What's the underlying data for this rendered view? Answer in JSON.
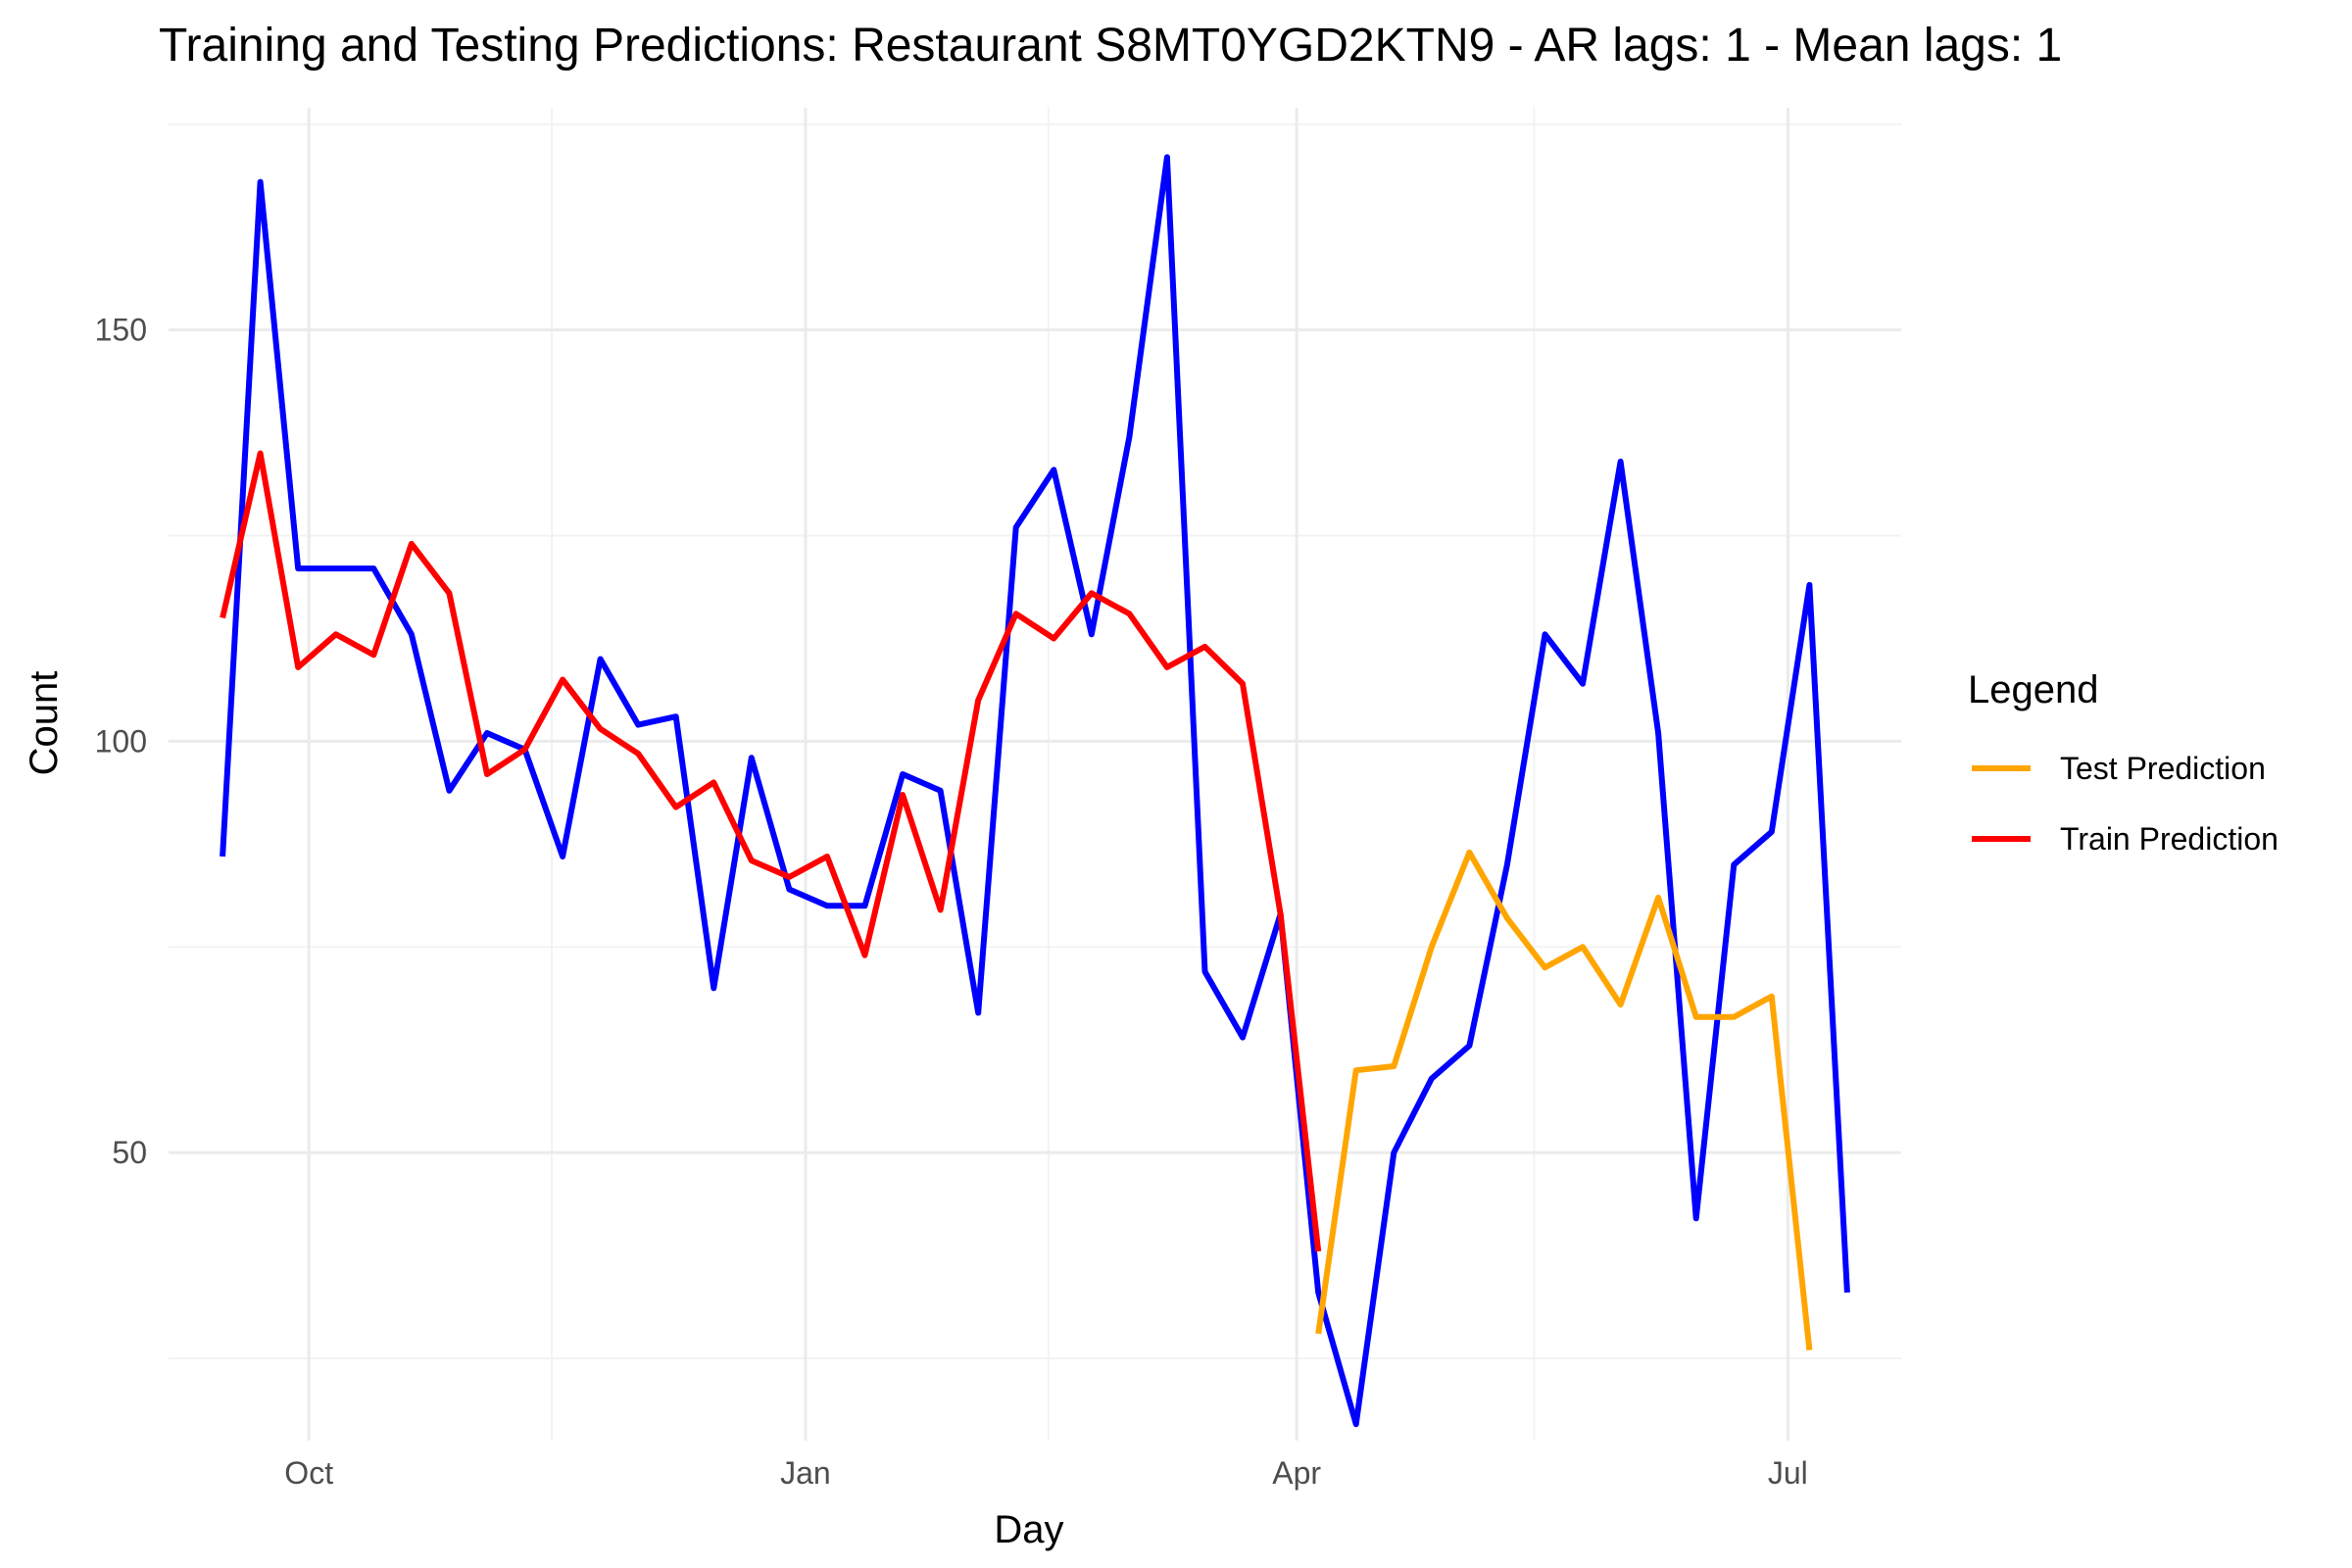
{
  "chart_data": {
    "type": "line",
    "title": "Training and Testing Predictions: Restaurant S8MT0YGD2KTN9 - AR lags: 1 - Mean lags: 1",
    "xlabel": "Day",
    "ylabel": "Count",
    "x_range": [
      "2023-09-05",
      "2024-07-22"
    ],
    "ylim": [
      15,
      177
    ],
    "x_ticks": [
      {
        "date": "2023-10-01",
        "label": "Oct"
      },
      {
        "date": "2024-01-01",
        "label": "Jan"
      },
      {
        "date": "2024-04-01",
        "label": "Apr"
      },
      {
        "date": "2024-07-01",
        "label": "Jul"
      }
    ],
    "x_minor_ticks": [
      "2023-11-15",
      "2024-02-15",
      "2024-05-15"
    ],
    "y_ticks": [
      {
        "value": 50,
        "label": "50"
      },
      {
        "value": 100,
        "label": "100"
      },
      {
        "value": 150,
        "label": "150"
      }
    ],
    "y_minor_ticks": [
      25,
      75,
      125,
      175
    ],
    "grid": true,
    "legend": {
      "title": "Legend",
      "position": "right",
      "entries": [
        {
          "label": "Test Prediction",
          "color": "#FFA500"
        },
        {
          "label": "Train Prediction",
          "color": "#FF0000"
        }
      ]
    },
    "series": [
      {
        "color": "#0000FF",
        "points": [
          [
            "2023-09-15",
            86
          ],
          [
            "2023-09-22",
            168
          ],
          [
            "2023-09-29",
            121
          ],
          [
            "2023-10-06",
            121
          ],
          [
            "2023-10-13",
            121
          ],
          [
            "2023-10-20",
            113
          ],
          [
            "2023-10-27",
            94
          ],
          [
            "2023-11-03",
            101
          ],
          [
            "2023-11-10",
            99
          ],
          [
            "2023-11-17",
            86
          ],
          [
            "2023-11-24",
            110
          ],
          [
            "2023-12-01",
            102
          ],
          [
            "2023-12-08",
            103
          ],
          [
            "2023-12-15",
            70
          ],
          [
            "2023-12-22",
            98
          ],
          [
            "2023-12-29",
            82
          ],
          [
            "2024-01-05",
            80
          ],
          [
            "2024-01-12",
            80
          ],
          [
            "2024-01-19",
            96
          ],
          [
            "2024-01-26",
            94
          ],
          [
            "2024-02-02",
            67
          ],
          [
            "2024-02-09",
            126
          ],
          [
            "2024-02-16",
            133
          ],
          [
            "2024-02-23",
            113
          ],
          [
            "2024-03-01",
            137
          ],
          [
            "2024-03-08",
            171
          ],
          [
            "2024-03-15",
            72
          ],
          [
            "2024-03-22",
            64
          ],
          [
            "2024-03-29",
            79
          ],
          [
            "2024-04-05",
            33
          ],
          [
            "2024-04-12",
            17
          ],
          [
            "2024-04-19",
            50
          ],
          [
            "2024-04-26",
            59
          ],
          [
            "2024-05-03",
            63
          ],
          [
            "2024-05-10",
            85
          ],
          [
            "2024-05-17",
            113
          ],
          [
            "2024-05-24",
            107
          ],
          [
            "2024-05-31",
            134
          ],
          [
            "2024-06-07",
            101
          ],
          [
            "2024-06-14",
            42
          ],
          [
            "2024-06-21",
            85
          ],
          [
            "2024-06-28",
            89
          ],
          [
            "2024-07-05",
            119
          ],
          [
            "2024-07-12",
            33
          ]
        ]
      },
      {
        "name": "Train Prediction",
        "color": "#FF0000",
        "points": [
          [
            "2023-09-15",
            115
          ],
          [
            "2023-09-22",
            135
          ],
          [
            "2023-09-29",
            109
          ],
          [
            "2023-10-06",
            113
          ],
          [
            "2023-10-13",
            110.5
          ],
          [
            "2023-10-20",
            124
          ],
          [
            "2023-10-27",
            118
          ],
          [
            "2023-11-03",
            96
          ],
          [
            "2023-11-10",
            99
          ],
          [
            "2023-11-17",
            107.5
          ],
          [
            "2023-11-24",
            101.5
          ],
          [
            "2023-12-01",
            98.5
          ],
          [
            "2023-12-08",
            92
          ],
          [
            "2023-12-15",
            95
          ],
          [
            "2023-12-22",
            85.5
          ],
          [
            "2023-12-29",
            83.5
          ],
          [
            "2024-01-05",
            86
          ],
          [
            "2024-01-12",
            74
          ],
          [
            "2024-01-19",
            93.5
          ],
          [
            "2024-01-26",
            79.5
          ],
          [
            "2024-02-02",
            105
          ],
          [
            "2024-02-09",
            115.5
          ],
          [
            "2024-02-16",
            112.5
          ],
          [
            "2024-02-23",
            118
          ],
          [
            "2024-03-01",
            115.5
          ],
          [
            "2024-03-08",
            109
          ],
          [
            "2024-03-15",
            111.5
          ],
          [
            "2024-03-22",
            107
          ],
          [
            "2024-03-29",
            79
          ],
          [
            "2024-04-05",
            38
          ]
        ]
      },
      {
        "name": "Test Prediction",
        "color": "#FFA500",
        "points": [
          [
            "2024-04-05",
            28
          ],
          [
            "2024-04-12",
            60
          ],
          [
            "2024-04-19",
            60.5
          ],
          [
            "2024-04-26",
            75
          ],
          [
            "2024-05-03",
            86.5
          ],
          [
            "2024-05-10",
            78.5
          ],
          [
            "2024-05-17",
            72.5
          ],
          [
            "2024-05-24",
            75
          ],
          [
            "2024-05-31",
            68
          ],
          [
            "2024-06-07",
            81
          ],
          [
            "2024-06-14",
            66.5
          ],
          [
            "2024-06-21",
            66.5
          ],
          [
            "2024-06-28",
            69
          ],
          [
            "2024-07-05",
            26
          ]
        ]
      }
    ]
  }
}
